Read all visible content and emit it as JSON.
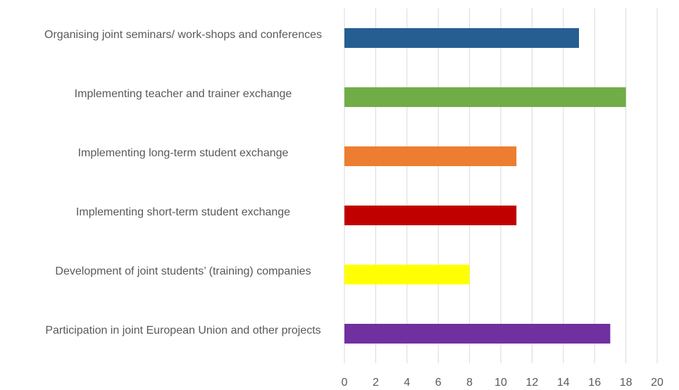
{
  "chart_data": {
    "type": "bar",
    "orientation": "horizontal",
    "categories": [
      "Organising joint seminars/ work-shops and conferences",
      "Implementing teacher and trainer exchange",
      "Implementing long-term student exchange",
      "Implementing short-term student exchange",
      "Development of joint students’ (training) companies",
      "Participation in joint European Union and other projects"
    ],
    "values": [
      15,
      18,
      11,
      11,
      8,
      17
    ],
    "colors": [
      "#255e91",
      "#70ad47",
      "#ed7d31",
      "#c00000",
      "#ffff00",
      "#7030a0"
    ],
    "xlim": [
      0,
      20
    ],
    "xticks": [
      0,
      2,
      4,
      6,
      8,
      10,
      12,
      14,
      16,
      18,
      20
    ],
    "grid": true
  }
}
